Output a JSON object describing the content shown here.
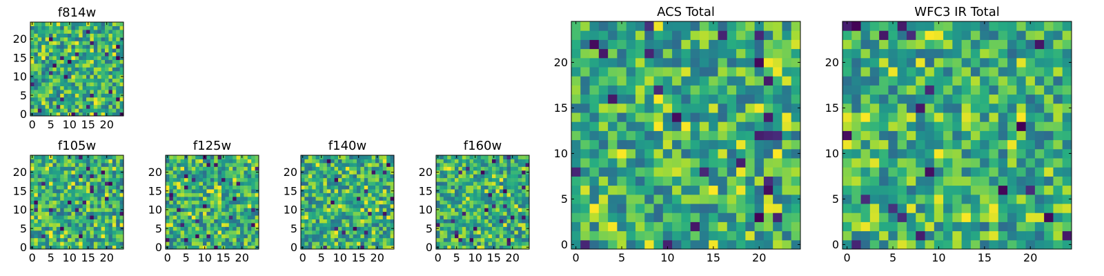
{
  "chart_data": [
    {
      "type": "heatmap",
      "title": "f814w",
      "colormap": "viridis",
      "grid": false,
      "xlim": [
        0,
        25
      ],
      "ylim": [
        0,
        25
      ],
      "xticks": [
        0,
        5,
        10,
        15,
        20
      ],
      "yticks": [
        0,
        5,
        10,
        15,
        20
      ],
      "seed": 11
    },
    {
      "type": "heatmap",
      "title": "f105w",
      "colormap": "viridis",
      "grid": false,
      "xlim": [
        0,
        25
      ],
      "ylim": [
        0,
        25
      ],
      "xticks": [
        0,
        5,
        10,
        15,
        20
      ],
      "yticks": [
        0,
        5,
        10,
        15,
        20
      ],
      "seed": 23
    },
    {
      "type": "heatmap",
      "title": "f125w",
      "colormap": "viridis",
      "grid": false,
      "xlim": [
        0,
        25
      ],
      "ylim": [
        0,
        25
      ],
      "xticks": [
        0,
        5,
        10,
        15,
        20
      ],
      "yticks": [
        0,
        5,
        10,
        15,
        20
      ],
      "seed": 37
    },
    {
      "type": "heatmap",
      "title": "f140w",
      "colormap": "viridis",
      "grid": false,
      "xlim": [
        0,
        25
      ],
      "ylim": [
        0,
        25
      ],
      "xticks": [
        0,
        5,
        10,
        15,
        20
      ],
      "yticks": [
        0,
        5,
        10,
        15,
        20
      ],
      "seed": 41
    },
    {
      "type": "heatmap",
      "title": "f160w",
      "colormap": "viridis",
      "grid": false,
      "xlim": [
        0,
        25
      ],
      "ylim": [
        0,
        25
      ],
      "xticks": [
        0,
        5,
        10,
        15,
        20
      ],
      "yticks": [
        0,
        5,
        10,
        15,
        20
      ],
      "seed": 53
    },
    {
      "type": "heatmap",
      "title": "ACS Total",
      "colormap": "viridis",
      "grid": false,
      "xlim": [
        0,
        25
      ],
      "ylim": [
        0,
        25
      ],
      "xticks": [
        0,
        5,
        10,
        15,
        20
      ],
      "yticks": [
        0,
        5,
        10,
        15,
        20
      ],
      "seed": 67
    },
    {
      "type": "heatmap",
      "title": "WFC3 IR Total",
      "colormap": "viridis",
      "grid": false,
      "xlim": [
        0,
        25
      ],
      "ylim": [
        0,
        25
      ],
      "xticks": [
        0,
        5,
        10,
        15,
        20
      ],
      "yticks": [
        0,
        5,
        10,
        15,
        20
      ],
      "seed": 79
    }
  ]
}
